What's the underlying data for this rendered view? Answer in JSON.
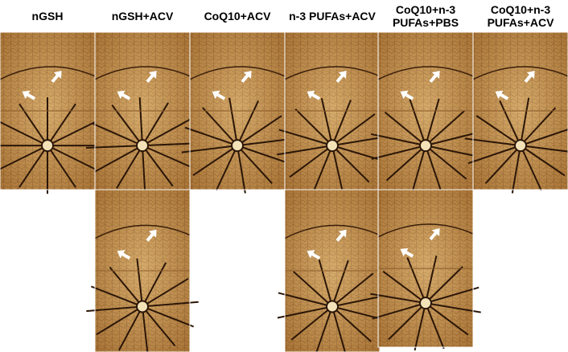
{
  "figure": {
    "headers": [
      "nGSH",
      "nGSH+ACV",
      "CoQ10+ACV",
      "n-3 PUFAs+ACV",
      "CoQ10+n-3\nPUFAs+PBS",
      "CoQ10+n-3\nPUFAs+ACV"
    ]
  }
}
